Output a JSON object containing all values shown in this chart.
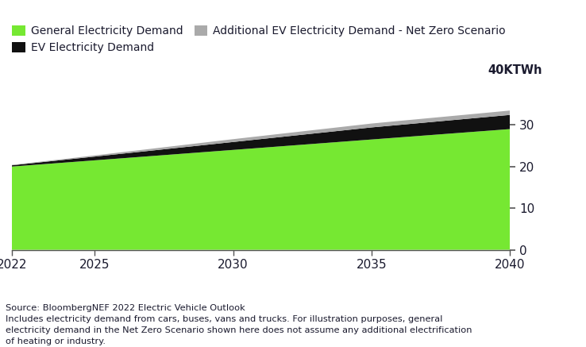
{
  "years": [
    2022,
    2023,
    2024,
    2025,
    2026,
    2027,
    2028,
    2029,
    2030,
    2031,
    2032,
    2033,
    2034,
    2035,
    2036,
    2037,
    2038,
    2039,
    2040
  ],
  "general_demand": [
    20.0,
    20.5,
    21.0,
    21.5,
    22.0,
    22.5,
    23.0,
    23.5,
    24.0,
    24.5,
    25.0,
    25.5,
    26.0,
    26.5,
    27.0,
    27.5,
    28.0,
    28.5,
    29.0
  ],
  "ev_demand": [
    0.3,
    0.5,
    0.7,
    0.9,
    1.1,
    1.3,
    1.5,
    1.7,
    1.9,
    2.1,
    2.3,
    2.5,
    2.7,
    2.9,
    3.0,
    3.1,
    3.2,
    3.3,
    3.4
  ],
  "ev_net_zero_additional": [
    0.1,
    0.15,
    0.2,
    0.28,
    0.36,
    0.44,
    0.52,
    0.6,
    0.68,
    0.73,
    0.78,
    0.83,
    0.88,
    0.93,
    0.96,
    0.98,
    1.0,
    1.02,
    1.05
  ],
  "general_color": "#76E832",
  "ev_color": "#111111",
  "netzero_color": "#aaaaaa",
  "ylim": [
    0,
    40
  ],
  "yticks": [
    0,
    10,
    20,
    30
  ],
  "ytick_label_top": "40KTWh",
  "xticks": [
    2022,
    2025,
    2030,
    2035,
    2040
  ],
  "legend_labels": [
    "General Electricity Demand",
    "EV Electricity Demand",
    "Additional EV Electricity Demand - Net Zero Scenario"
  ],
  "source_text": "Source: BloombergNEF 2022 Electric Vehicle Outlook\nIncludes electricity demand from cars, buses, vans and trucks. For illustration purposes, general\nelectricity demand in the Net Zero Scenario shown here does not assume any additional electrification\nof heating or industry.",
  "text_color": "#1a1a2e",
  "bg_color": "#ffffff"
}
